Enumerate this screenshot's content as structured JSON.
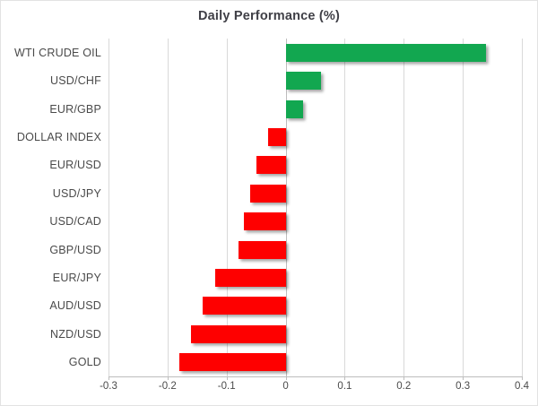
{
  "chart_data": {
    "type": "bar",
    "orientation": "horizontal",
    "title": "Daily Performance (%)",
    "categories": [
      "WTI CRUDE OIL",
      "USD/CHF",
      "EUR/GBP",
      "DOLLAR INDEX",
      "EUR/USD",
      "USD/JPY",
      "USD/CAD",
      "GBP/USD",
      "EUR/JPY",
      "AUD/USD",
      "NZD/USD",
      "GOLD"
    ],
    "values": [
      0.34,
      0.06,
      0.03,
      -0.03,
      -0.05,
      -0.06,
      -0.07,
      -0.08,
      -0.12,
      -0.14,
      -0.16,
      -0.18
    ],
    "xlim": [
      -0.3,
      0.4
    ],
    "x_ticks": [
      -0.3,
      -0.2,
      -0.1,
      0,
      0.1,
      0.2,
      0.3,
      0.4
    ],
    "x_tick_labels": [
      "-0.3",
      "-0.2",
      "-0.1",
      "0",
      "0.1",
      "0.2",
      "0.3",
      "0.4"
    ],
    "grid": "vertical-gridlines",
    "legend": "none",
    "colors": {
      "positive": "#12A750",
      "negative": "#FE0000"
    }
  }
}
